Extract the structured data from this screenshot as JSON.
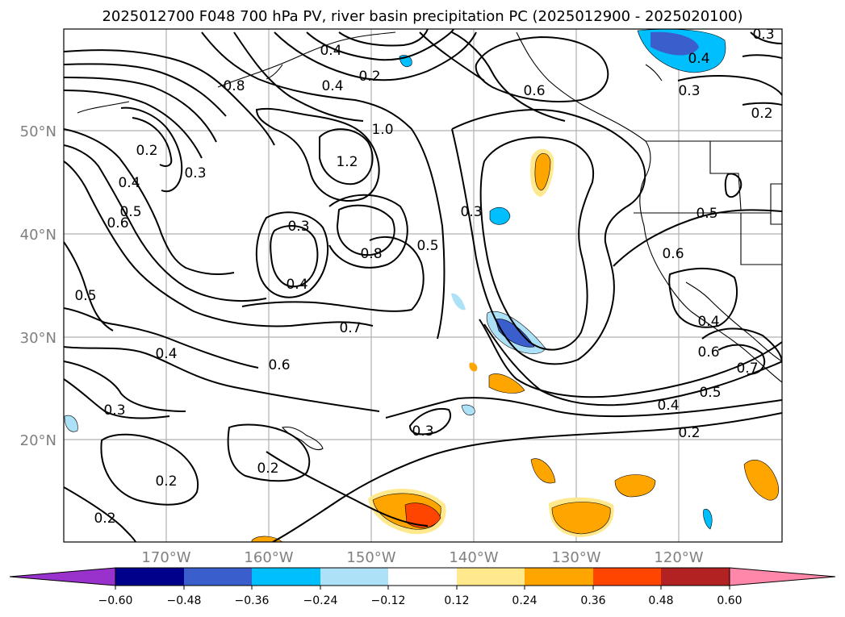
{
  "title": "2025012700 F048 700 hPa PV, river basin precipitation PC (2025012900 - 2025020100)",
  "map": {
    "lat_labels": [
      "50°N",
      "40°N",
      "30°N",
      "20°N"
    ],
    "lon_labels": [
      "170°W",
      "160°W",
      "150°W",
      "140°W",
      "130°W",
      "120°W"
    ],
    "grid": true
  },
  "contour_labels": [
    {
      "text": "0.2"
    },
    {
      "text": "0.3"
    },
    {
      "text": "0.4"
    },
    {
      "text": "0.5"
    },
    {
      "text": "0.6"
    },
    {
      "text": "0.5"
    },
    {
      "text": "0.8"
    },
    {
      "text": "0.4"
    },
    {
      "text": "0.3"
    },
    {
      "text": "0.5"
    },
    {
      "text": "0.4"
    },
    {
      "text": "0.8"
    },
    {
      "text": "0.7"
    },
    {
      "text": "0.6"
    },
    {
      "text": "0.4"
    },
    {
      "text": "0.3"
    },
    {
      "text": "0.2"
    },
    {
      "text": "0.2"
    },
    {
      "text": "0.3"
    },
    {
      "text": "0.2"
    },
    {
      "text": "0.6"
    },
    {
      "text": "1.2"
    },
    {
      "text": "1.0"
    },
    {
      "text": "0.3"
    },
    {
      "text": "0.5"
    },
    {
      "text": "0.2"
    },
    {
      "text": "0.4"
    },
    {
      "text": "0.6"
    },
    {
      "text": "0.4"
    },
    {
      "text": "0.3"
    },
    {
      "text": "0.2"
    },
    {
      "text": "0.5"
    },
    {
      "text": "0.4"
    },
    {
      "text": "0.3"
    },
    {
      "text": "0.6"
    },
    {
      "text": "0.5"
    },
    {
      "text": "0.7"
    },
    {
      "text": "0.4"
    },
    {
      "text": "0.2"
    },
    {
      "text": "0.3"
    }
  ],
  "colorbar": {
    "colors": [
      "#9932CC",
      "#00008B",
      "#3A5FCD",
      "#00BFFF",
      "#ADE1F8",
      "#FFFFFF",
      "#FFE98C",
      "#FFA500",
      "#FF4500",
      "#B22222",
      "#FF88AA"
    ],
    "labels": [
      "−0.60",
      "−0.48",
      "−0.36",
      "−0.24",
      "−0.12",
      "0.12",
      "0.24",
      "0.36",
      "0.48",
      "0.60"
    ]
  }
}
